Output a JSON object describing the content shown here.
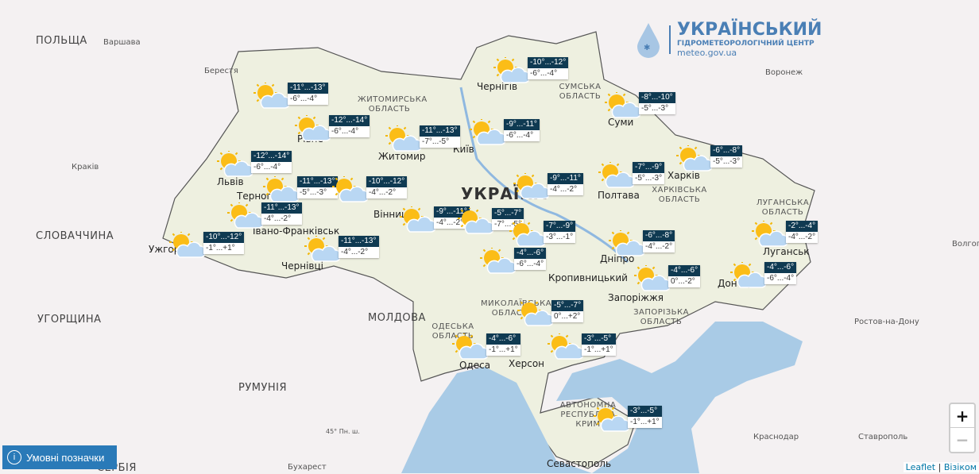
{
  "logo": {
    "title": "УКРАЇНСЬКИЙ",
    "subtitle": "ГІДРОМЕТЕОРОЛОГІЧНИЙ ЦЕНТР",
    "site": "meteo.gov.ua"
  },
  "labels": {
    "countries": [
      "ПОЛЬЩА",
      "СЛОВАЧЧИНА",
      "УГОРЩИНА",
      "РУМУНІЯ",
      "МОЛДОВА",
      "СЕРБІЯ",
      "УКРАЇНА"
    ],
    "cities": [
      "Варшава",
      "Берестя",
      "Краків",
      "Воронеж",
      "Ростов-на-Дону",
      "Краснодар",
      "Ставрополь",
      "Волгоград",
      "Бухарест",
      "Чернігів",
      "Суми",
      "Київ",
      "Житомир",
      "Рівне",
      "Львів",
      "Тернопіль",
      "Івано-Франківськ",
      "Ужгород",
      "Чернівці",
      "Вінниця",
      "Полтава",
      "Харків",
      "Дніпро",
      "Запоріжжя",
      "Донецьк",
      "Луганськ",
      "Одеса",
      "Херсон",
      "Севастополь",
      "Кропивницький"
    ],
    "oblasts": [
      "СУМСЬКА ОБЛАСТЬ",
      "ХАРКІВСЬКА ОБЛАСТЬ",
      "ЗАПОРІЗЬКА ОБЛАСТЬ",
      "МИКОЛАЇВСЬКА ОБЛАСТЬ",
      "ОДЕСЬКА ОБЛАСТЬ",
      "ЛУГАНСЬКА ОБЛАСТЬ",
      "ЖИТОМИРСЬКА ОБЛАСТЬ",
      "АВТОНОМНА РЕСПУБЛІКА КРИМ"
    ],
    "parallel": "45° Пн. ш."
  },
  "markers": [
    {
      "icon": "sun-cloud-icon",
      "day": "-11°...-13°",
      "night": "-6°...-4°"
    },
    {
      "icon": "sun-cloud-icon",
      "day": "-12°...-14°",
      "night": "-6°...-4°"
    },
    {
      "icon": "sun-cloud-icon",
      "day": "-11°...-13°",
      "night": "-7°...-5°"
    },
    {
      "icon": "sun-cloud-icon",
      "day": "-9°...-11°",
      "night": "-6°...-4°"
    },
    {
      "icon": "sun-cloud-icon",
      "day": "-10°...-12°",
      "night": "-6°...-4°"
    },
    {
      "icon": "sun-cloud-icon",
      "day": "-8°...-10°",
      "night": "-5°...-3°"
    },
    {
      "icon": "sun-cloud-icon",
      "day": "-6°...-8°",
      "night": "-5°...-3°"
    },
    {
      "icon": "sun-cloud-icon",
      "day": "-7°...-9°",
      "night": "-5°...-3°"
    },
    {
      "icon": "sun-cloud-icon",
      "day": "-9°...-11°",
      "night": "-4°...-2°"
    },
    {
      "icon": "sun-cloud-icon",
      "day": "-12°...-14°",
      "night": "-6°...-4°"
    },
    {
      "icon": "sun-cloud-icon",
      "day": "-11°...-13°",
      "night": "-5°...-3°"
    },
    {
      "icon": "sun-cloud-icon",
      "day": "-10°...-12°",
      "night": "-4°...-2°"
    },
    {
      "icon": "sun-cloud-icon",
      "day": "-11°...-13°",
      "night": "-4°...-2°"
    },
    {
      "icon": "sun-cloud-icon",
      "day": "-10°...-12°",
      "night": "-1°...+1°"
    },
    {
      "icon": "sun-cloud-icon",
      "day": "-11°...-13°",
      "night": "-4°...-2°"
    },
    {
      "icon": "sun-cloud-icon",
      "day": "-9°...-11°",
      "night": "-4°...-2°"
    },
    {
      "icon": "sun-cloud-icon",
      "day": "-5°...-7°",
      "night": "-7°...-5°"
    },
    {
      "icon": "sun-cloud-icon",
      "day": "-7°...-9°",
      "night": "-3°...-1°"
    },
    {
      "icon": "sun-cloud-icon",
      "day": "-6°...-8°",
      "night": "-4°...-2°"
    },
    {
      "icon": "sun-cloud-icon",
      "day": "-2°...-4°",
      "night": "-4°...-2°"
    },
    {
      "icon": "sun-cloud-icon",
      "day": "-4°...-6°",
      "night": "-6°...-4°"
    },
    {
      "icon": "sun-cloud-icon",
      "day": "-4°...-6°",
      "night": "0°...-2°"
    },
    {
      "icon": "sun-cloud-icon",
      "day": "-4°...-6°",
      "night": "-6°...-4°"
    },
    {
      "icon": "sun-cloud-icon",
      "day": "-5°...-7°",
      "night": "0°...+2°"
    },
    {
      "icon": "sun-cloud-icon",
      "day": "-4°...-6°",
      "night": "-1°...+1°"
    },
    {
      "icon": "sun-cloud-icon",
      "day": "-3°...-5°",
      "night": "-1°...+1°"
    },
    {
      "icon": "sun-cloud-icon",
      "day": "-3°...-5°",
      "night": "-1°...+1°"
    }
  ],
  "controls": {
    "legend_button": "Умовні позначки",
    "zoom_in": "+",
    "zoom_out": "−",
    "attribution_leaflet": "Leaflet",
    "attribution_sep": " | ",
    "attribution_provider": "Візіком"
  },
  "colors": {
    "header_box": "#0f3a52",
    "sea": "#a9cbe6",
    "land_ukraine": "#eef0e2",
    "legend_button": "#2a7ab8"
  }
}
